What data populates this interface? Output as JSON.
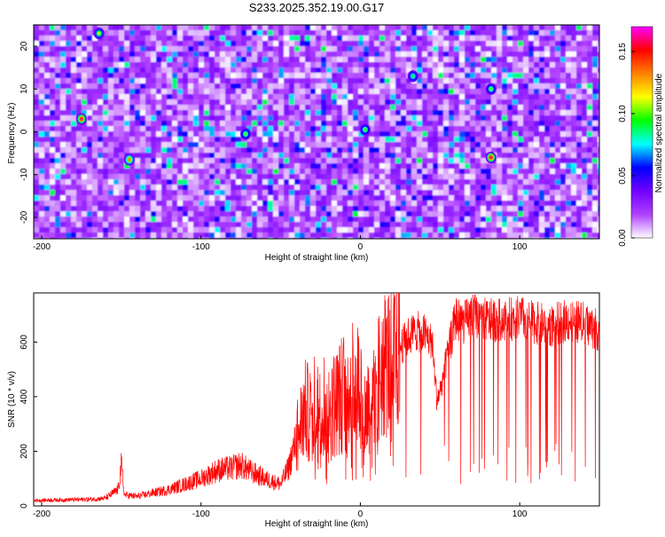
{
  "chart_data": [
    {
      "type": "heatmap",
      "title": "S233.2025.352.19.00.G17",
      "xlabel": "Height of straight line (km)",
      "ylabel": "Frequency (Hz)",
      "xlim": [
        -205,
        150
      ],
      "ylim": [
        -25,
        25
      ],
      "x_ticks": [
        -200,
        -100,
        0,
        100
      ],
      "x_tick_labels": [
        "-200",
        "-100",
        "0",
        "100"
      ],
      "y_ticks": [
        -20,
        -10,
        0,
        10,
        20
      ],
      "y_tick_labels": [
        "-20",
        "-10",
        "0",
        "10",
        "20"
      ],
      "colorbar": {
        "label": "Normalized spectral amplitude",
        "range": [
          0.0,
          0.17
        ],
        "ticks": [
          0.0,
          0.05,
          0.1,
          0.15
        ],
        "tick_labels": [
          "0.00",
          "0.05",
          "0.10",
          "0.15"
        ],
        "colors": [
          "#ffffff",
          "#b040ff",
          "#7000ff",
          "#0000ff",
          "#00ffff",
          "#00ff00",
          "#ffff00",
          "#ff8000",
          "#ff0000",
          "#ff00ff"
        ]
      },
      "background_level": 0.02,
      "hotspots": [
        {
          "x": -175,
          "y": 3,
          "value": 0.16
        },
        {
          "x": 82,
          "y": -6,
          "value": 0.16
        },
        {
          "x": -145,
          "y": -6.5,
          "value": 0.13
        },
        {
          "x": -164,
          "y": 23,
          "value": 0.11
        },
        {
          "x": -72,
          "y": -0.5,
          "value": 0.1
        },
        {
          "x": 3,
          "y": 0.5,
          "value": 0.1
        },
        {
          "x": 82,
          "y": 10,
          "value": 0.1
        },
        {
          "x": 33,
          "y": 13,
          "value": 0.09
        }
      ]
    },
    {
      "type": "line",
      "xlabel": "Height of straight line (km)",
      "ylabel": "SNR (10 * v/v)",
      "xlim": [
        -205,
        150
      ],
      "ylim": [
        0,
        780
      ],
      "x_ticks": [
        -200,
        -100,
        0,
        100
      ],
      "x_tick_labels": [
        "-200",
        "-100",
        "0",
        "100"
      ],
      "y_ticks": [
        0,
        200,
        400,
        600
      ],
      "y_tick_labels": [
        "0",
        "200",
        "400",
        "600"
      ],
      "series": [
        {
          "name": "SNR",
          "color": "#ff0000",
          "x": [
            -205,
            -190,
            -170,
            -160,
            -152,
            -150,
            -148,
            -140,
            -120,
            -100,
            -90,
            -80,
            -75,
            -70,
            -60,
            -50,
            -45,
            -40,
            -35,
            -30,
            -28,
            -25,
            -22,
            -20,
            -15,
            -10,
            -5,
            0,
            2,
            5,
            10,
            15,
            20,
            25,
            30,
            35,
            40,
            45,
            48,
            50,
            55,
            60,
            65,
            70,
            80,
            90,
            100,
            110,
            120,
            130,
            140,
            150
          ],
          "y": [
            20,
            22,
            24,
            28,
            60,
            150,
            40,
            35,
            60,
            100,
            130,
            140,
            150,
            130,
            100,
            80,
            140,
            250,
            350,
            330,
            380,
            420,
            360,
            350,
            380,
            420,
            440,
            460,
            320,
            380,
            480,
            520,
            540,
            580,
            620,
            640,
            630,
            600,
            390,
            420,
            560,
            690,
            670,
            700,
            680,
            680,
            690,
            670,
            660,
            680,
            670,
            640
          ]
        }
      ]
    }
  ]
}
